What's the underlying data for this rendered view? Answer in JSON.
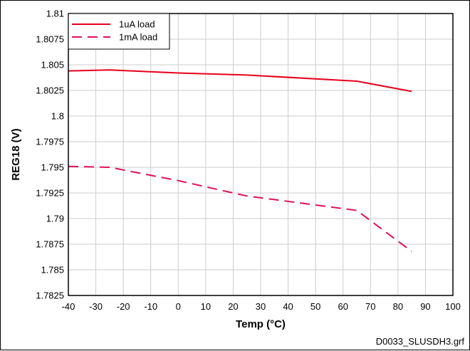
{
  "chart_data": {
    "type": "line",
    "xlabel": "Temp (°C)",
    "ylabel": "REG18 (V)",
    "xlim": [
      -40,
      100
    ],
    "ylim": [
      1.7825,
      1.81
    ],
    "x_ticks": [
      "-40",
      "-30",
      "-20",
      "-10",
      "0",
      "10",
      "20",
      "30",
      "40",
      "50",
      "60",
      "70",
      "80",
      "90",
      "100"
    ],
    "y_ticks": [
      "1.81",
      "1.8075",
      "1.805",
      "1.8025",
      "1.8",
      "1.7975",
      "1.795",
      "1.7925",
      "1.79",
      "1.7875",
      "1.785",
      "1.7825"
    ],
    "grid": true,
    "legend_position": "top-left",
    "series": [
      {
        "name": "1uA load",
        "style": "solid",
        "color": "#e8001c",
        "x": [
          -40,
          -25,
          0,
          25,
          65,
          85
        ],
        "y": [
          1.8044,
          1.8045,
          1.8042,
          1.804,
          1.8034,
          1.8024
        ]
      },
      {
        "name": "1mA load",
        "style": "dashed",
        "color": "#e0105a",
        "x": [
          -40,
          -25,
          0,
          25,
          65,
          85
        ],
        "y": [
          1.7951,
          1.795,
          1.7937,
          1.7922,
          1.7908,
          1.7868
        ]
      }
    ]
  },
  "footnote": "D0033_SLUSDH3.grf"
}
